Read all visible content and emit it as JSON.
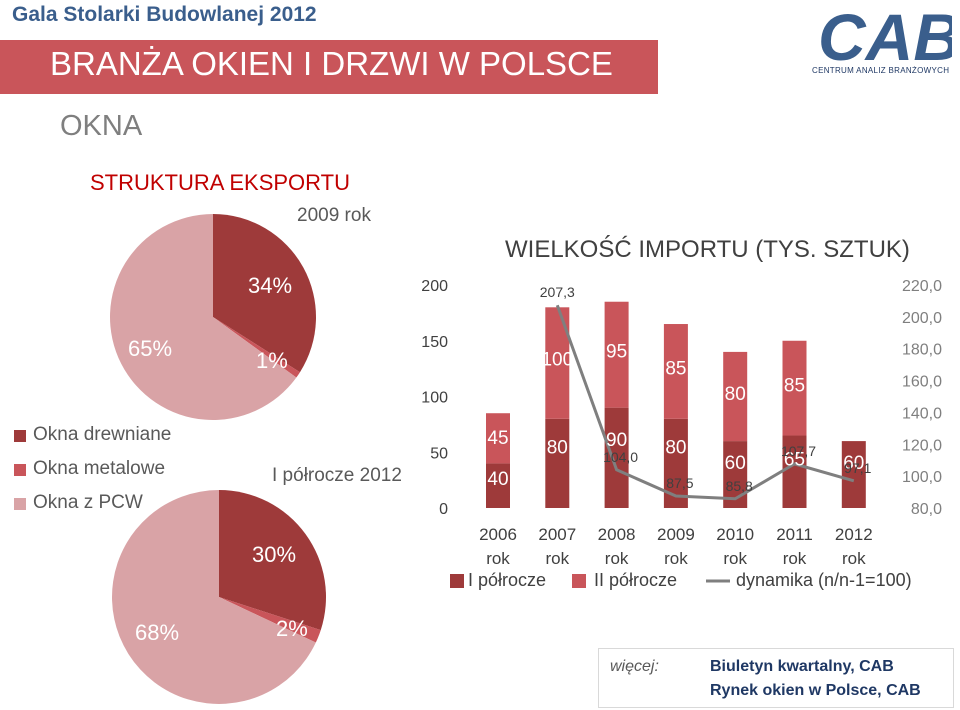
{
  "header": {
    "event_title": "Gala Stolarki Budowlanej 2012",
    "main_title": "BRANŻA OKIEN I DRZWI W POLSCE",
    "section_title": "OKNA",
    "logo_text": "CAB",
    "logo_subtitle": "CENTRUM ANALIZ BRANŻOWYCH"
  },
  "export": {
    "title": "STRUKTURA EKSPORTU",
    "legend": [
      {
        "label": "Okna drewniane",
        "color": "#9e3a3a"
      },
      {
        "label": "Okna metalowe",
        "color": "#c9555a"
      },
      {
        "label": "Okna z PCW",
        "color": "#d9a3a6"
      }
    ]
  },
  "chart_data": [
    {
      "type": "pie",
      "title": "2009 rok",
      "categories": [
        "Okna drewniane",
        "Okna metalowe",
        "Okna z PCW"
      ],
      "values": [
        34,
        1,
        65
      ],
      "labels": [
        "34%",
        "1%",
        "65%"
      ]
    },
    {
      "type": "pie",
      "title": "I półrocze 2012",
      "categories": [
        "Okna drewniane",
        "Okna metalowe",
        "Okna z PCW"
      ],
      "values": [
        30,
        2,
        68
      ],
      "labels": [
        "30%",
        "2%",
        "68%"
      ]
    },
    {
      "type": "bar",
      "title": "WIELKOŚĆ IMPORTU (TYS. SZTUK)",
      "categories": [
        "2006\nrok",
        "2007\nrok",
        "2008\nrok",
        "2009\nrok",
        "2010\nrok",
        "2011\nrok",
        "2012\nrok"
      ],
      "series": [
        {
          "name": "I półrocze",
          "values": [
            40,
            80,
            90,
            80,
            60,
            65,
            60
          ],
          "labels": [
            "40",
            "80",
            "90",
            "80",
            "60",
            "65",
            "60"
          ],
          "color": "#9e3a3a"
        },
        {
          "name": "II półrocze",
          "values": [
            45,
            100,
            95,
            85,
            80,
            85,
            null
          ],
          "labels": [
            "45",
            "100",
            "95",
            "85",
            "80",
            "85",
            ""
          ],
          "color": "#c9555a"
        },
        {
          "name": "dynamika (n/n-1=100)",
          "values": [
            null,
            207.3,
            104.0,
            87.5,
            85.8,
            107.7,
            97.1
          ],
          "labels": [
            "",
            "207,3",
            "104,0",
            "87,5",
            "85,8",
            "107,7",
            "97,1"
          ],
          "color": "#7f7f7f",
          "axis": "right"
        }
      ],
      "stacked": true,
      "ylim": [
        0,
        200
      ],
      "yticks": [
        "0",
        "50",
        "100",
        "150",
        "200"
      ],
      "y2lim": [
        80,
        220
      ],
      "y2ticks": [
        "80,0",
        "100,0",
        "120,0",
        "140,0",
        "160,0",
        "180,0",
        "200,0",
        "220,0"
      ],
      "legend_position": "bottom"
    }
  ],
  "footer": {
    "more_label": "więcej:",
    "line1": "Biuletyn kwartalny, CAB",
    "line2": "Rynek okien w Polsce, CAB"
  }
}
